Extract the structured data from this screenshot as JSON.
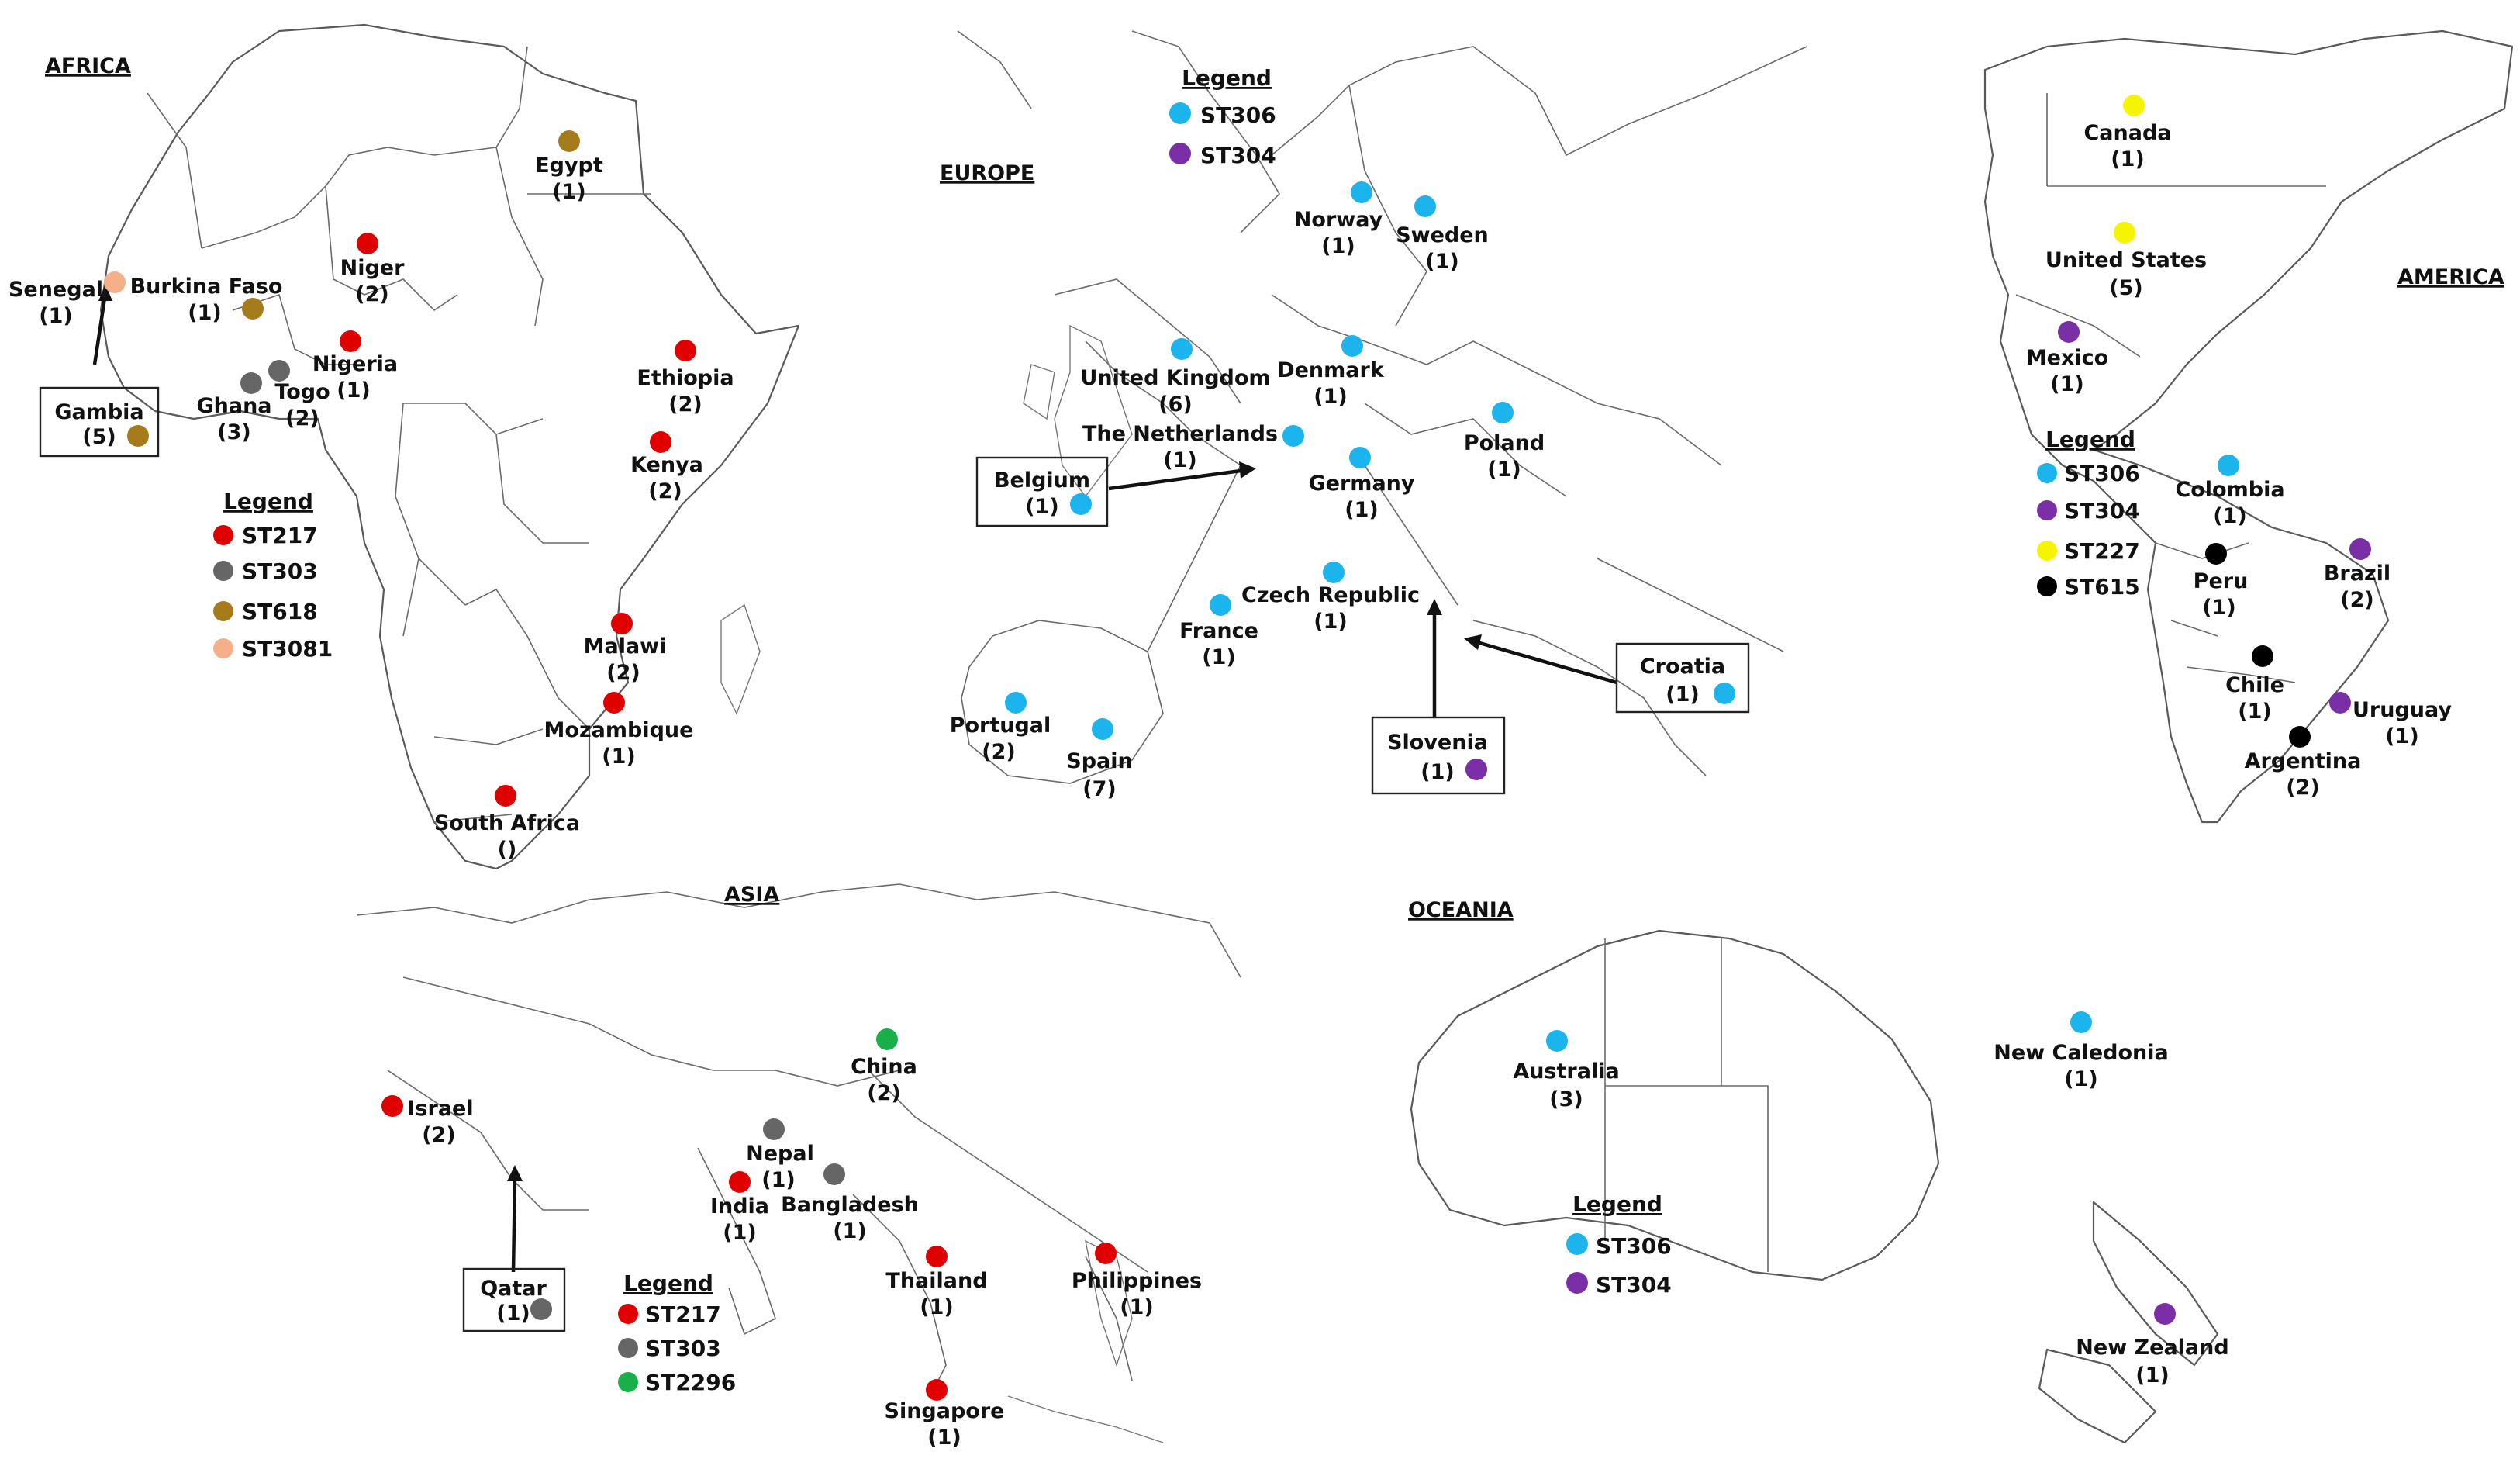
{
  "colors": {
    "ST217": "#e00000",
    "ST303": "#666666",
    "ST618": "#a67c1a",
    "ST3081": "#f5b08a",
    "ST306": "#1cb4ec",
    "ST304": "#7b2fa6",
    "ST227": "#f5f500",
    "ST615": "#000000",
    "ST2296": "#19b04a"
  },
  "panels": [
    {
      "id": "africa",
      "title": "AFRICA",
      "legend": {
        "title": "Legend",
        "items": [
          {
            "label": "ST217",
            "color": "#e00000"
          },
          {
            "label": "ST303",
            "color": "#666666"
          },
          {
            "label": "ST618",
            "color": "#a67c1a"
          },
          {
            "label": "ST3081",
            "color": "#f5b08a"
          }
        ]
      },
      "countries": [
        {
          "name": "Egypt",
          "count": "(1)",
          "st": "ST618"
        },
        {
          "name": "Niger",
          "count": "(2)",
          "st": "ST217"
        },
        {
          "name": "Senegal",
          "count": "(1)",
          "st": "ST3081"
        },
        {
          "name": "Burkina Faso",
          "count": "(1)",
          "st": "ST618"
        },
        {
          "name": "Nigeria",
          "count": "(1)",
          "st": "ST217"
        },
        {
          "name": "Ghana",
          "count": "(3)",
          "st": "ST303"
        },
        {
          "name": "Togo",
          "count": "(2)",
          "st": "ST303"
        },
        {
          "name": "Gambia",
          "count": "(5)",
          "st": "ST618"
        },
        {
          "name": "Ethiopia",
          "count": "(2)",
          "st": "ST217"
        },
        {
          "name": "Kenya",
          "count": "(2)",
          "st": "ST217"
        },
        {
          "name": "Malawi",
          "count": "(2)",
          "st": "ST217"
        },
        {
          "name": "Mozambique",
          "count": "(1)",
          "st": "ST217"
        },
        {
          "name": "South Africa",
          "count": "()",
          "st": "ST217"
        }
      ]
    },
    {
      "id": "europe",
      "title": "EUROPE",
      "legend": {
        "title": "Legend",
        "items": [
          {
            "label": "ST306",
            "color": "#1cb4ec"
          },
          {
            "label": "ST304",
            "color": "#7b2fa6"
          }
        ]
      },
      "countries": [
        {
          "name": "Norway",
          "count": "(1)",
          "st": "ST306"
        },
        {
          "name": "Sweden",
          "count": "(1)",
          "st": "ST306"
        },
        {
          "name": "United Kingdom",
          "count": "(6)",
          "st": "ST306"
        },
        {
          "name": "Denmark",
          "count": "(1)",
          "st": "ST306"
        },
        {
          "name": "The Netherlands",
          "count": "(1)",
          "st": "ST306"
        },
        {
          "name": "Belgium",
          "count": "(1)",
          "st": "ST306"
        },
        {
          "name": "Germany",
          "count": "(1)",
          "st": "ST306"
        },
        {
          "name": "Poland",
          "count": "(1)",
          "st": "ST306"
        },
        {
          "name": "Czech Republic",
          "count": "(1)",
          "st": "ST306"
        },
        {
          "name": "France",
          "count": "(1)",
          "st": "ST306"
        },
        {
          "name": "Croatia",
          "count": "(1)",
          "st": "ST306"
        },
        {
          "name": "Portugal",
          "count": "(2)",
          "st": "ST306"
        },
        {
          "name": "Spain",
          "count": "(7)",
          "st": "ST306"
        },
        {
          "name": "Slovenia",
          "count": "(1)",
          "st": "ST304"
        }
      ]
    },
    {
      "id": "america",
      "title": "AMERICA",
      "legend": {
        "title": "Legend",
        "items": [
          {
            "label": "ST306",
            "color": "#1cb4ec"
          },
          {
            "label": "ST304",
            "color": "#7b2fa6"
          },
          {
            "label": "ST227",
            "color": "#f5f500"
          },
          {
            "label": "ST615",
            "color": "#000000"
          }
        ]
      },
      "countries": [
        {
          "name": "Canada",
          "count": "(1)",
          "st": "ST227"
        },
        {
          "name": "United States",
          "count": "(5)",
          "st": "ST227"
        },
        {
          "name": "Mexico",
          "count": "(1)",
          "st": "ST304"
        },
        {
          "name": "Colombia",
          "count": "(1)",
          "st": "ST306"
        },
        {
          "name": "Peru",
          "count": "(1)",
          "st": "ST615"
        },
        {
          "name": "Brazil",
          "count": "(2)",
          "st": "ST304"
        },
        {
          "name": "Chile",
          "count": "(1)",
          "st": "ST615"
        },
        {
          "name": "Uruguay",
          "count": "(1)",
          "st": "ST304"
        },
        {
          "name": "Argentina",
          "count": "(2)",
          "st": "ST615"
        }
      ]
    },
    {
      "id": "asia",
      "title": "ASIA",
      "legend": {
        "title": "Legend",
        "items": [
          {
            "label": "ST217",
            "color": "#e00000"
          },
          {
            "label": "ST303",
            "color": "#666666"
          },
          {
            "label": "ST2296",
            "color": "#19b04a"
          }
        ]
      },
      "countries": [
        {
          "name": "China",
          "count": "(2)",
          "st": "ST2296"
        },
        {
          "name": "Israel",
          "count": "(2)",
          "st": "ST217"
        },
        {
          "name": "Nepal",
          "count": "(1)",
          "st": "ST303"
        },
        {
          "name": "India",
          "count": "(1)",
          "st": "ST217"
        },
        {
          "name": "Bangladesh",
          "count": "(1)",
          "st": "ST303"
        },
        {
          "name": "Qatar",
          "count": "(1)",
          "st": "ST303"
        },
        {
          "name": "Thailand",
          "count": "(1)",
          "st": "ST217"
        },
        {
          "name": "Philippines",
          "count": "(1)",
          "st": "ST217"
        },
        {
          "name": "Singapore",
          "count": "(1)",
          "st": "ST217"
        }
      ]
    },
    {
      "id": "oceania",
      "title": "OCEANIA",
      "legend": {
        "title": "Legend",
        "items": [
          {
            "label": "ST306",
            "color": "#1cb4ec"
          },
          {
            "label": "ST304",
            "color": "#7b2fa6"
          }
        ]
      },
      "countries": [
        {
          "name": "Australia",
          "count": "(3)",
          "st": "ST306"
        },
        {
          "name": "New Caledonia",
          "count": "(1)",
          "st": "ST306"
        },
        {
          "name": "New Zealand",
          "count": "(1)",
          "st": "ST304"
        }
      ]
    }
  ]
}
